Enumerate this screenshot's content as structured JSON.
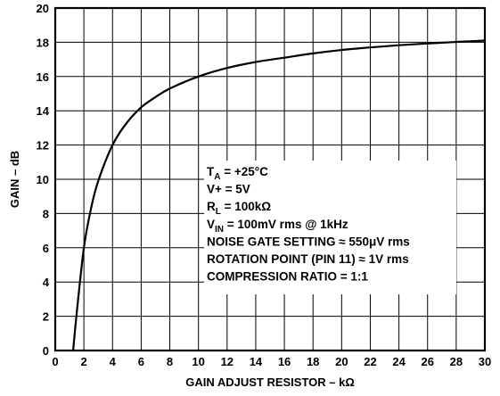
{
  "chart_data": {
    "type": "line",
    "title": "",
    "xlabel": "GAIN ADJUST RESISTOR – kΩ",
    "ylabel": "GAIN – dB",
    "xlim": [
      0,
      30
    ],
    "ylim": [
      0,
      20
    ],
    "x_ticks": [
      "0",
      "2",
      "4",
      "6",
      "8",
      "10",
      "12",
      "14",
      "16",
      "18",
      "20",
      "22",
      "24",
      "26",
      "28",
      "30"
    ],
    "y_ticks": [
      "0",
      "2",
      "4",
      "6",
      "8",
      "10",
      "12",
      "14",
      "16",
      "18",
      "20"
    ],
    "grid": true,
    "series": [
      {
        "x": [
          1.25,
          1.5,
          2,
          2.5,
          3,
          4,
          5,
          6,
          7,
          8,
          10,
          12,
          14,
          16,
          18,
          20,
          22,
          24,
          26,
          28,
          30
        ],
        "y": [
          0,
          2.2,
          6,
          8.3,
          9.9,
          12.0,
          13.3,
          14.2,
          14.8,
          15.3,
          16.0,
          16.5,
          16.85,
          17.1,
          17.35,
          17.55,
          17.7,
          17.83,
          17.93,
          18.02,
          18.1
        ]
      }
    ],
    "annotations": [
      {
        "main": "T",
        "sub": "A",
        "rest": " = +25°C"
      },
      {
        "main": "V+ = 5V",
        "sub": "",
        "rest": ""
      },
      {
        "main": "R",
        "sub": "L",
        "rest": " = 100kΩ"
      },
      {
        "main": "V",
        "sub": "IN",
        "rest": " = 100mV rms @ 1kHz"
      },
      {
        "main": "NOISE GATE SETTING ≈ 550μV rms",
        "sub": "",
        "rest": ""
      },
      {
        "main": "ROTATION POINT (PIN 11) ≈ 1V rms",
        "sub": "",
        "rest": ""
      },
      {
        "main": "COMPRESSION RATIO = 1:1",
        "sub": "",
        "rest": ""
      }
    ]
  }
}
